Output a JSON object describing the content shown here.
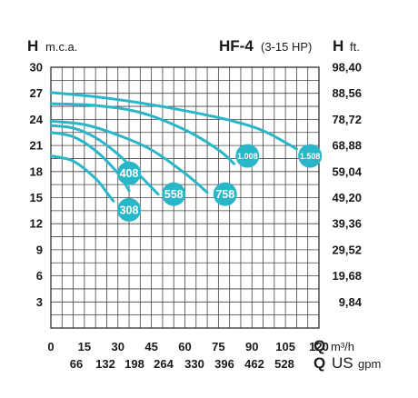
{
  "chart_data": {
    "type": "line",
    "title": "HF-4",
    "subtitle": "(3-15 HP)",
    "y_left": {
      "symbol": "H",
      "unit": "m.c.a.",
      "range": [
        0,
        30
      ],
      "ticks": [
        "3",
        "6",
        "9",
        "12",
        "15",
        "18",
        "21",
        "24",
        "27",
        "30"
      ]
    },
    "y_right": {
      "symbol": "H",
      "unit": "ft.",
      "ticks": [
        "9,84",
        "19,68",
        "29,52",
        "39,36",
        "49,20",
        "59,04",
        "68,88",
        "78,72",
        "88,56",
        "98,40"
      ]
    },
    "x_bottom": {
      "symbol": "Q",
      "unit": "m³/h",
      "range": [
        0,
        120
      ],
      "ticks": [
        "0",
        "15",
        "30",
        "45",
        "60",
        "75",
        "90",
        "105",
        "120"
      ]
    },
    "x_second": {
      "symbol": "Q",
      "unit": "US",
      "unit2": "gpm",
      "ticks": [
        "66",
        "132",
        "198",
        "264",
        "330",
        "396",
        "462",
        "528"
      ]
    },
    "grid": true,
    "line_color": "#29b6c8",
    "series": [
      {
        "name": "308",
        "label_at": [
          35,
          13.6
        ],
        "x": [
          0,
          10,
          20,
          25,
          28
        ],
        "y": [
          19.8,
          19.2,
          17.2,
          15.6,
          14.6
        ]
      },
      {
        "name": "408",
        "label_at": [
          35,
          17.8
        ],
        "x": [
          0,
          10,
          20,
          30,
          35
        ],
        "y": [
          22.5,
          22.0,
          20.4,
          17.8,
          15.8
        ]
      },
      {
        "name": "558",
        "label_at": [
          55,
          15.4
        ],
        "x": [
          0,
          10,
          20,
          30,
          40,
          48
        ],
        "y": [
          23.3,
          23.0,
          21.9,
          20.0,
          17.5,
          15.4
        ]
      },
      {
        "name": "758",
        "label_at": [
          78,
          15.4
        ],
        "x": [
          0,
          15,
          30,
          45,
          60,
          70
        ],
        "y": [
          23.8,
          23.4,
          22.2,
          20.5,
          17.8,
          15.6
        ]
      },
      {
        "name": "1.008",
        "label_at": [
          88,
          19.8
        ],
        "x": [
          0,
          20,
          40,
          60,
          75,
          82
        ],
        "y": [
          25.8,
          25.6,
          24.8,
          22.8,
          20.5,
          18.9
        ]
      },
      {
        "name": "1.508",
        "label_at": [
          116,
          19.8
        ],
        "x": [
          0,
          20,
          40,
          60,
          80,
          95,
          110
        ],
        "y": [
          27.1,
          26.6,
          25.9,
          25.0,
          23.9,
          22.7,
          20.6
        ]
      }
    ]
  }
}
